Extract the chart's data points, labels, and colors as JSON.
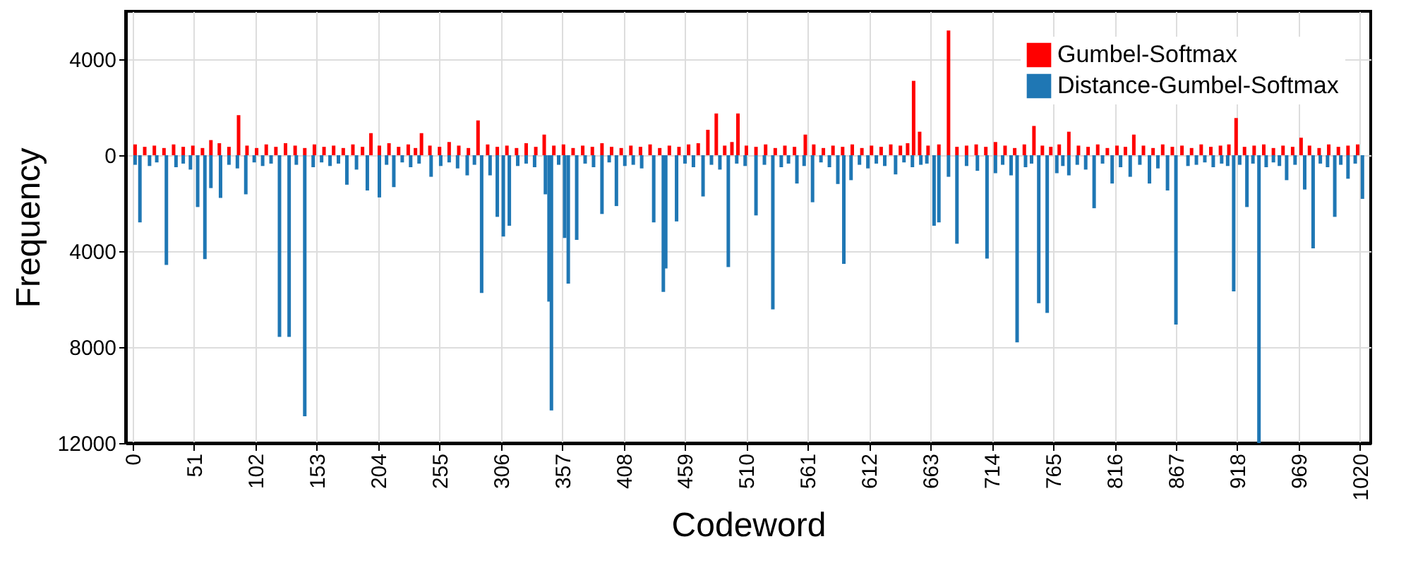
{
  "chart_data": {
    "type": "bar",
    "xlabel": "Codeword",
    "ylabel": "Frequency",
    "xlim": [
      0,
      1023
    ],
    "xticks": [
      0,
      51,
      102,
      153,
      204,
      255,
      306,
      357,
      408,
      459,
      510,
      561,
      612,
      663,
      714,
      765,
      816,
      867,
      918,
      969,
      1020
    ],
    "ylim": [
      -12000,
      6000
    ],
    "yticks": [
      {
        "value": 4000,
        "label": "4000"
      },
      {
        "value": 0,
        "label": "0"
      },
      {
        "value": -4000,
        "label": "4000"
      },
      {
        "value": -8000,
        "label": "8000"
      },
      {
        "value": -12000,
        "label": "12000"
      }
    ],
    "grid": true,
    "legend": "top right",
    "series": [
      {
        "name": "Gumbel-Softmax",
        "color": "#ff0000",
        "x": [
          2,
          10,
          18,
          26,
          34,
          42,
          50,
          58,
          65,
          72,
          80,
          88,
          95,
          103,
          111,
          119,
          127,
          135,
          143,
          151,
          159,
          167,
          175,
          183,
          191,
          198,
          205,
          213,
          221,
          229,
          235,
          240,
          247,
          255,
          263,
          271,
          279,
          287,
          295,
          303,
          311,
          319,
          327,
          335,
          342,
          350,
          358,
          366,
          374,
          382,
          390,
          398,
          406,
          414,
          422,
          430,
          438,
          446,
          454,
          462,
          470,
          478,
          485,
          492,
          498,
          503,
          510,
          518,
          526,
          534,
          542,
          550,
          559,
          566,
          574,
          582,
          590,
          598,
          606,
          614,
          622,
          630,
          638,
          644,
          649,
          654,
          661,
          670,
          678,
          685,
          693,
          701,
          709,
          717,
          725,
          733,
          741,
          749,
          756,
          763,
          770,
          778,
          786,
          794,
          802,
          810,
          818,
          825,
          832,
          840,
          848,
          856,
          864,
          872,
          880,
          888,
          896,
          904,
          911,
          917,
          924,
          932,
          940,
          948,
          956,
          964,
          971,
          978,
          986,
          994,
          1002,
          1010,
          1018
        ],
        "values": [
          450,
          350,
          400,
          300,
          450,
          350,
          400,
          300,
          630,
          500,
          350,
          1670,
          400,
          300,
          450,
          350,
          500,
          400,
          300,
          450,
          350,
          400,
          300,
          450,
          350,
          920,
          400,
          500,
          350,
          450,
          300,
          920,
          400,
          350,
          550,
          400,
          300,
          1450,
          450,
          350,
          400,
          300,
          500,
          350,
          860,
          400,
          450,
          300,
          400,
          350,
          500,
          350,
          300,
          400,
          350,
          450,
          300,
          400,
          350,
          450,
          500,
          1060,
          1740,
          400,
          550,
          1740,
          400,
          350,
          450,
          300,
          400,
          350,
          860,
          450,
          300,
          400,
          350,
          450,
          300,
          400,
          350,
          450,
          400,
          500,
          3100,
          980,
          400,
          450,
          5200,
          350,
          400,
          450,
          350,
          550,
          400,
          300,
          450,
          1220,
          400,
          350,
          450,
          980,
          400,
          350,
          450,
          300,
          400,
          350,
          860,
          400,
          300,
          450,
          350,
          400,
          300,
          450,
          350,
          400,
          450,
          1550,
          350,
          400,
          450,
          300,
          400,
          350,
          730,
          400,
          300,
          450,
          350,
          400,
          450
        ]
      },
      {
        "name": "Distance-Gumbel-Softmax",
        "color": "#1f77b4",
        "x": [
          2,
          6,
          14,
          20,
          28,
          36,
          42,
          48,
          54,
          60,
          65,
          73,
          80,
          87,
          94,
          101,
          108,
          115,
          122,
          130,
          136,
          143,
          150,
          157,
          164,
          171,
          178,
          186,
          195,
          205,
          211,
          217,
          224,
          231,
          238,
          248,
          256,
          263,
          270,
          278,
          284,
          290,
          297,
          303,
          308,
          313,
          320,
          327,
          334,
          343,
          346,
          348,
          354,
          359,
          362,
          369,
          376,
          383,
          390,
          396,
          402,
          409,
          416,
          423,
          433,
          441,
          443,
          452,
          459,
          466,
          474,
          481,
          488,
          495,
          502,
          509,
          518,
          525,
          532,
          539,
          545,
          552,
          558,
          565,
          572,
          579,
          586,
          591,
          597,
          604,
          611,
          618,
          625,
          634,
          641,
          648,
          655,
          660,
          666,
          670,
          678,
          685,
          693,
          702,
          710,
          717,
          723,
          730,
          735,
          742,
          747,
          753,
          760,
          768,
          773,
          778,
          785,
          792,
          799,
          806,
          814,
          821,
          829,
          837,
          845,
          852,
          860,
          867,
          877,
          884,
          891,
          898,
          905,
          910,
          915,
          920,
          926,
          931,
          936,
          942,
          948,
          953,
          959,
          966,
          974,
          981,
          987,
          993,
          999,
          1004,
          1010,
          1016,
          1022
        ],
        "values": [
          -400,
          -2800,
          -450,
          -300,
          -4570,
          -500,
          -350,
          -600,
          -2160,
          -4330,
          -1370,
          -1780,
          -400,
          -550,
          -1630,
          -300,
          -450,
          -350,
          -7570,
          -7570,
          -400,
          -10880,
          -500,
          -300,
          -450,
          -350,
          -1230,
          -600,
          -1470,
          -1760,
          -400,
          -1330,
          -300,
          -500,
          -350,
          -900,
          -450,
          -300,
          -550,
          -840,
          -400,
          -5740,
          -840,
          -2570,
          -3390,
          -2940,
          -450,
          -350,
          -500,
          -1630,
          -6100,
          -10640,
          -400,
          -3450,
          -5350,
          -3530,
          -350,
          -500,
          -2450,
          -300,
          -2120,
          -450,
          -400,
          -550,
          -2800,
          -5700,
          -4720,
          -2760,
          -350,
          -500,
          -1720,
          -400,
          -600,
          -4660,
          -350,
          -450,
          -2510,
          -400,
          -6430,
          -500,
          -350,
          -1180,
          -450,
          -1960,
          -300,
          -500,
          -1200,
          -4530,
          -1040,
          -400,
          -550,
          -350,
          -450,
          -800,
          -300,
          -500,
          -400,
          -350,
          -2940,
          -2800,
          -900,
          -3690,
          -450,
          -650,
          -4310,
          -750,
          -400,
          -840,
          -7800,
          -500,
          -350,
          -6170,
          -6570,
          -750,
          -450,
          -840,
          -400,
          -600,
          -2210,
          -350,
          -1180,
          -500,
          -900,
          -400,
          -1180,
          -550,
          -1470,
          -7060,
          -450,
          -400,
          -300,
          -500,
          -350,
          -450,
          -5680,
          -400,
          -2160,
          -350,
          -12000,
          -500,
          -300,
          -450,
          -1040,
          -400,
          -1430,
          -3880,
          -350,
          -500,
          -2570,
          -400,
          -980,
          -350,
          -1820
        ]
      }
    ]
  }
}
